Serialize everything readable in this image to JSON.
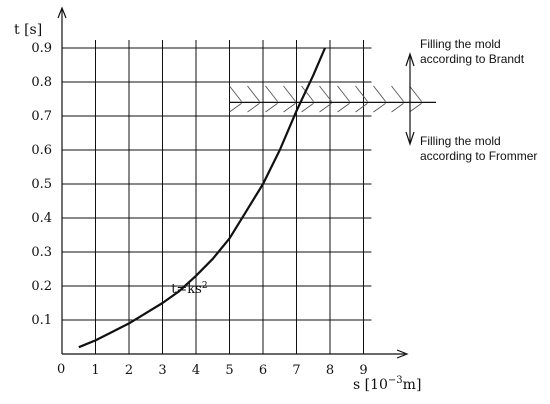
{
  "chart_data": {
    "type": "line",
    "title": "",
    "ylabel": "t [s]",
    "xlabel_main": "s [10",
    "xlabel_exp": "−3",
    "xlabel_end": "m]",
    "origin_label": "0",
    "xlim": [
      0,
      9
    ],
    "ylim": [
      0,
      0.9
    ],
    "xticks": [
      1,
      2,
      3,
      4,
      5,
      6,
      7,
      8,
      9
    ],
    "yticks": [
      0.1,
      0.2,
      0.3,
      0.4,
      0.5,
      0.6,
      0.7,
      0.8,
      0.9
    ],
    "grid": true,
    "series": [
      {
        "label_main": "t=ks",
        "label_exp": "2",
        "label_at": [
          3.2,
          0.18
        ],
        "x": [
          0.5,
          1.0,
          1.5,
          2.0,
          2.5,
          3.0,
          3.5,
          4.0,
          4.5,
          5.0,
          5.5,
          6.0,
          6.5,
          7.0,
          7.5,
          7.85
        ],
        "y": [
          0.02,
          0.04,
          0.065,
          0.09,
          0.12,
          0.15,
          0.185,
          0.23,
          0.28,
          0.34,
          0.42,
          0.5,
          0.6,
          0.715,
          0.82,
          0.9
        ]
      }
    ],
    "boundary": {
      "y": 0.74,
      "x_start": 5.0,
      "band_top": 0.8,
      "band_bottom": 0.7
    },
    "annotations": {
      "brandt_line1": "Filling the mold",
      "brandt_line2": "according to Brandt",
      "frommer_line1": "Filling the mold",
      "frommer_line2": "according to Frommer"
    }
  }
}
